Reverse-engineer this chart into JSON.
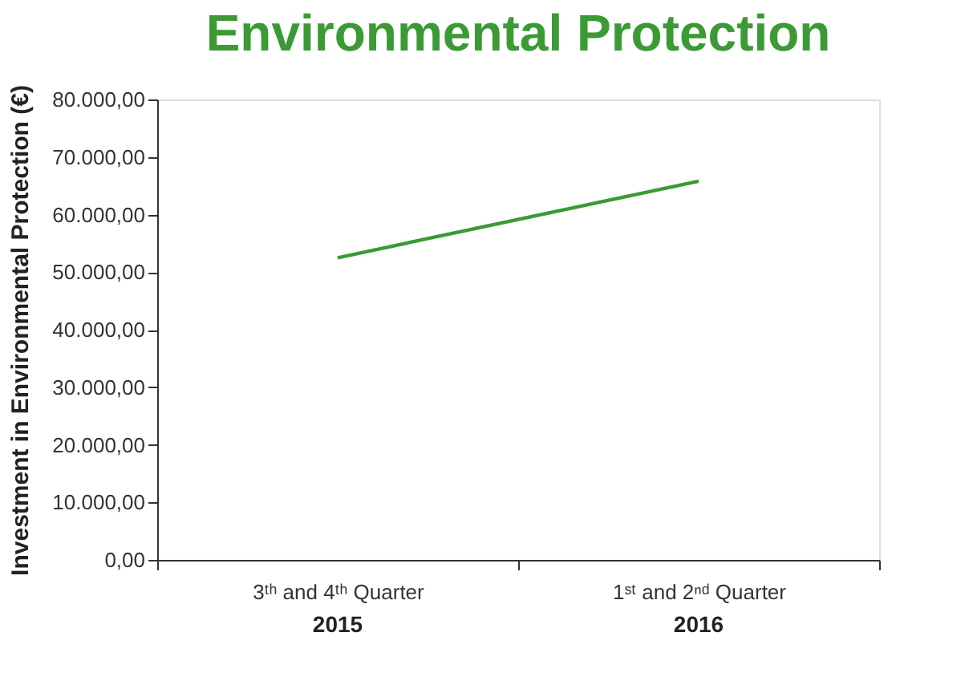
{
  "chart_data": {
    "type": "line",
    "title": "Environmental Protection",
    "ylabel": "Investment in Environmental Protection (€)",
    "categories": [
      "3ᵗʰ and 4ᵗʰ Quarter",
      "1ˢᵗ and 2ⁿᵈ Quarter"
    ],
    "series": [
      {
        "color": "#3c9a35",
        "values": [
          52500,
          65800
        ]
      }
    ],
    "ylim": [
      0,
      80000
    ],
    "yticks": [
      {
        "value": 0,
        "label": "0,00"
      },
      {
        "value": 10000,
        "label": "10.000,00"
      },
      {
        "value": 20000,
        "label": "20.000,00"
      },
      {
        "value": 30000,
        "label": "30.000,00"
      },
      {
        "value": 40000,
        "label": "40.000,00"
      },
      {
        "value": 50000,
        "label": "50.000,00"
      },
      {
        "value": 60000,
        "label": "60.000,00"
      },
      {
        "value": 70000,
        "label": "70.000,00"
      },
      {
        "value": 80000,
        "label": "80.000,00"
      }
    ],
    "annotations": [
      "2015",
      "2016"
    ],
    "grid": false,
    "legend": false,
    "marker": "none",
    "line_style": "solid"
  }
}
